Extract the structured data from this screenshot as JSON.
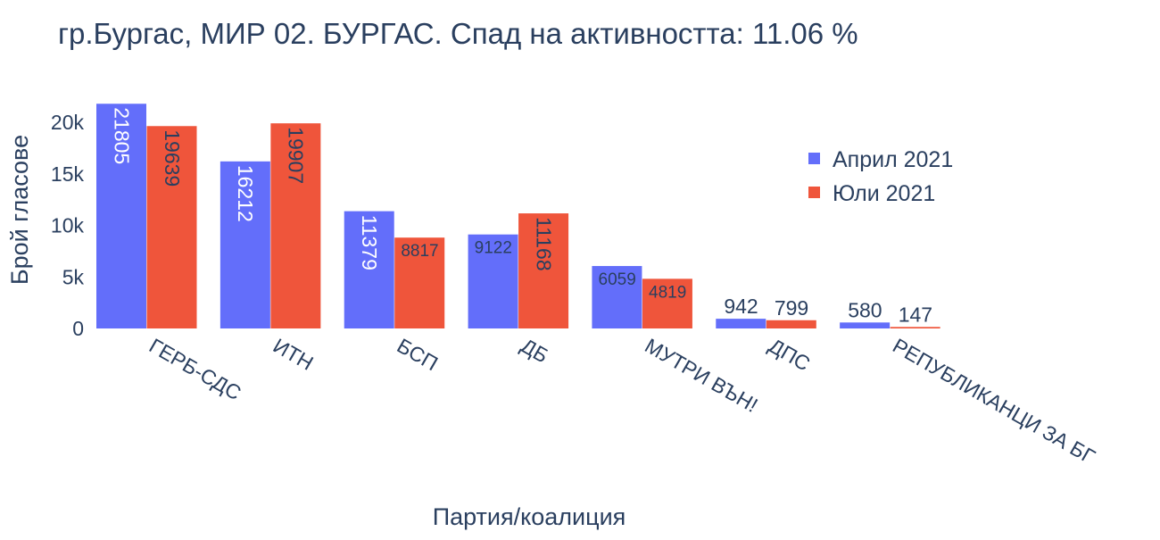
{
  "chart_data": {
    "type": "bar",
    "title": "гр.Бургас, МИР 02. БУРГАС. Спад на активността: 11.06 %",
    "xlabel": "Партия/коалиция",
    "ylabel": "Брой гласове",
    "categories": [
      "ГЕРБ-СДС",
      "ИТН",
      "БСП",
      "ДБ",
      "МУТРИ ВЪН!",
      "ДПС",
      "РЕПУБЛИКАНЦИ ЗА БГ"
    ],
    "series": [
      {
        "name": "Април 2021",
        "color": "#636efa",
        "values": [
          21805,
          16212,
          11379,
          9122,
          6059,
          942,
          580
        ]
      },
      {
        "name": "Юли 2021",
        "color": "#ef553b",
        "values": [
          19639,
          19907,
          8817,
          11168,
          4819,
          799,
          147
        ]
      }
    ],
    "ylim": [
      0,
      22953
    ],
    "yticks": [
      0,
      5000,
      10000,
      15000,
      20000
    ],
    "ytick_labels": [
      "0",
      "5k",
      "10k",
      "15k",
      "20k"
    ],
    "grid": false,
    "legend_position": "top-right",
    "text_color": "#2a3f5f"
  }
}
